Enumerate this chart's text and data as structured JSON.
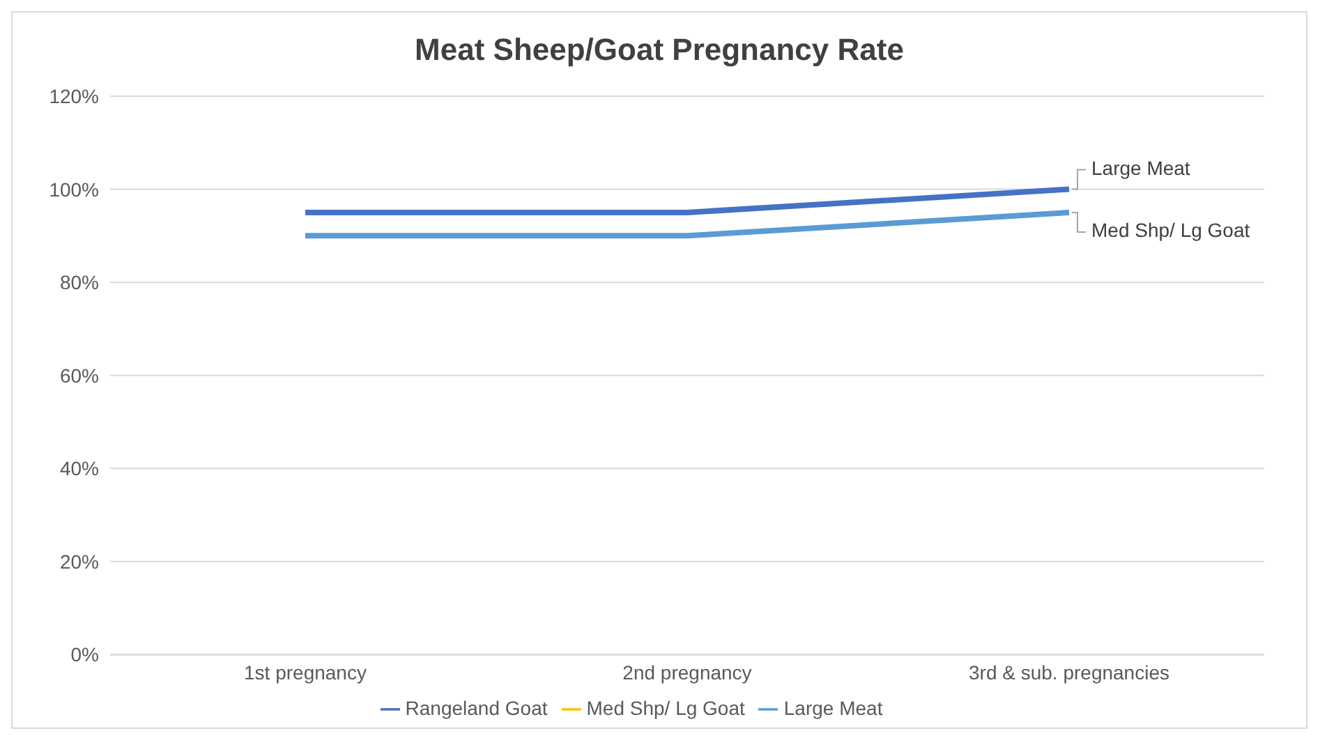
{
  "chart_data": {
    "type": "line",
    "title": "Meat Sheep/Goat Pregnancy Rate",
    "categories": [
      "1st pregnancy",
      "2nd pregnancy",
      "3rd & sub. pregnancies"
    ],
    "series": [
      {
        "name": "Rangeland Goat",
        "color": "#4472c4",
        "values": [
          95,
          95,
          100
        ]
      },
      {
        "name": "Med Shp/ Lg Goat",
        "color": "#ffc000",
        "values": [
          null,
          null,
          null
        ]
      },
      {
        "name": "Large Meat",
        "color": "#5b9bd5",
        "values": [
          90,
          90,
          95
        ]
      }
    ],
    "ylim": [
      0,
      120
    ],
    "yticks": [
      {
        "value": 0,
        "label": "0%"
      },
      {
        "value": 20,
        "label": "20%"
      },
      {
        "value": 40,
        "label": "40%"
      },
      {
        "value": 60,
        "label": "60%"
      },
      {
        "value": 80,
        "label": "80%"
      },
      {
        "value": 100,
        "label": "100%"
      },
      {
        "value": 120,
        "label": "120%"
      }
    ],
    "annotations": [
      {
        "text": "Large Meat",
        "x": "3rd & sub. pregnancies",
        "y": 100
      },
      {
        "text": "Med Shp/ Lg Goat",
        "x": "3rd & sub. pregnancies",
        "y": 95
      }
    ],
    "grid": "y",
    "legend": "bottom",
    "marker": "none",
    "line_style": "solid"
  }
}
